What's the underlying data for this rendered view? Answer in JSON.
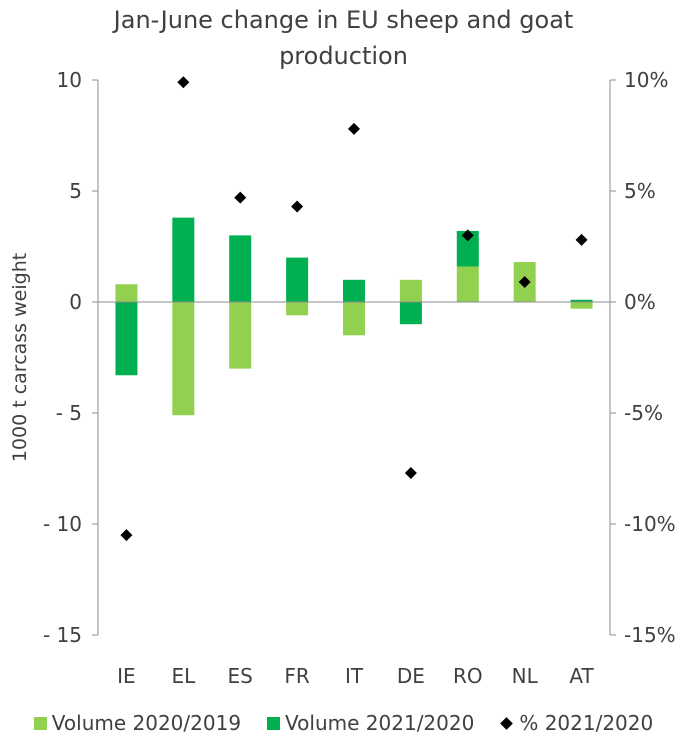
{
  "chart_data": {
    "type": "bar",
    "title_lines": [
      "Jan-June change in EU sheep and goat",
      "production"
    ],
    "ylabel": "1000 t carcass weight",
    "categories": [
      "IE",
      "EL",
      "ES",
      "FR",
      "IT",
      "DE",
      "RO",
      "NL",
      "AT"
    ],
    "ylim": [
      -15,
      10
    ],
    "yticks": [
      10,
      5,
      0,
      -5,
      -10,
      -15
    ],
    "ytick_labels": [
      "10",
      "5",
      "0",
      "- 5",
      "- 10",
      "- 15"
    ],
    "y2lim": [
      -15,
      10
    ],
    "y2ticks": [
      10,
      5,
      0,
      -5,
      -10,
      -15
    ],
    "y2tick_labels": [
      "10%",
      "5%",
      "0%",
      "-5%",
      "-10%",
      "-15%"
    ],
    "series": [
      {
        "name": "Volume 2020/2019",
        "kind": "bar",
        "color": "#92D050",
        "values": [
          0.8,
          -5.1,
          -3.0,
          -0.6,
          -1.5,
          1.0,
          1.6,
          1.8,
          -0.3
        ]
      },
      {
        "name": "Volume 2021/2020",
        "kind": "bar",
        "color": "#00B050",
        "values": [
          -3.3,
          3.8,
          3.0,
          2.0,
          1.0,
          -1.0,
          1.6,
          0.0,
          0.1
        ]
      },
      {
        "name": "% 2021/2020",
        "kind": "scatter",
        "axis": "right",
        "color": "#000000",
        "values": [
          -10.5,
          9.9,
          4.7,
          4.3,
          7.8,
          -7.7,
          3.0,
          0.9,
          2.8
        ]
      }
    ],
    "grid": false,
    "legend": "bottom"
  }
}
